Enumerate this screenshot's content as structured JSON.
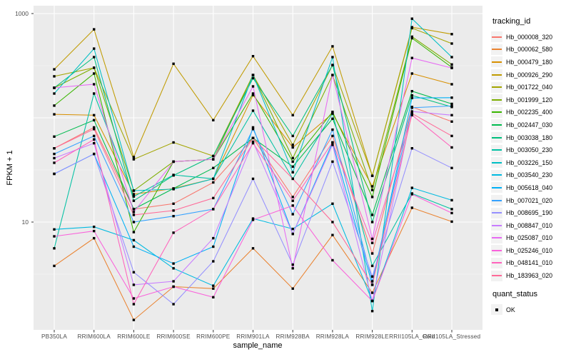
{
  "chart_data": {
    "type": "line",
    "title": "",
    "xlabel": "sample_name",
    "ylabel": "FPKM + 1",
    "scale": "log10",
    "ylim": [
      1,
      1200
    ],
    "yticks": [
      1000,
      10
    ],
    "ytick_labels": [
      "1000",
      "10"
    ],
    "panel_bg": "#EBEBEB",
    "grid_color": "#FFFFFF",
    "point": {
      "shape": "square",
      "color": "#000000"
    },
    "legend_title": "tracking_id",
    "legend2_title": "quant_status",
    "legend2_items": [
      "OK"
    ],
    "legend_position": "right",
    "categories": [
      "PB350LA",
      "RRIM600LA",
      "RRIM600LE",
      "RRIM600SE",
      "RRIM600PE",
      "RRIM901LA",
      "RRIM928BA",
      "RRIM928LA",
      "RRIM928LE",
      "RRII105LA_Cold",
      "RRII105LA_Stressed"
    ],
    "series": [
      {
        "name": "Hb_000008_320",
        "color": "#F8766D",
        "values": [
          51,
          81,
          13.3,
          15,
          24,
          64,
          17.4,
          67,
          5,
          127,
          92
        ]
      },
      {
        "name": "Hb_000062_580",
        "color": "#EA8331",
        "values": [
          3.8,
          7,
          1.15,
          2.4,
          2.3,
          5.6,
          2.3,
          7.5,
          2.1,
          13.7,
          10.1
        ]
      },
      {
        "name": "Hb_000479_180",
        "color": "#D89000",
        "values": [
          108,
          106,
          18.5,
          21,
          26,
          165,
          52,
          110,
          22,
          266,
          210
        ]
      },
      {
        "name": "Hb_000926_290",
        "color": "#C09B00",
        "values": [
          292,
          706,
          42,
          330,
          95,
          390,
          106,
          485,
          27.8,
          740,
          635
        ]
      },
      {
        "name": "Hb_001722_040",
        "color": "#A3A500",
        "values": [
          250,
          302,
          40,
          58,
          43,
          257,
          55,
          321,
          27.8,
          725,
          516
        ]
      },
      {
        "name": "Hb_001999_120",
        "color": "#7CAE00",
        "values": [
          194,
          302,
          20,
          38,
          40,
          257,
          41,
          257,
          20.3,
          600,
          325
        ]
      },
      {
        "name": "Hb_002235_400",
        "color": "#39B600",
        "values": [
          131,
          266,
          8,
          38,
          40,
          171,
          38,
          114,
          17.4,
          580,
          305
        ]
      },
      {
        "name": "Hb_002447_030",
        "color": "#00BB4E",
        "values": [
          66,
          95,
          13.3,
          21,
          33,
          64,
          34,
          98,
          11.7,
          180,
          136
        ]
      },
      {
        "name": "Hb_003038_180",
        "color": "#00BF7D",
        "values": [
          194,
          382,
          16,
          28,
          43,
          240,
          67,
          321,
          10,
          164,
          127
        ]
      },
      {
        "name": "Hb_003050_230",
        "color": "#00C1A3",
        "values": [
          5.6,
          171,
          17.6,
          28.3,
          26,
          117,
          26,
          110,
          3.8,
          18.8,
          13.3
        ]
      },
      {
        "name": "Hb_003226_150",
        "color": "#00BFC4",
        "values": [
          171,
          461,
          20,
          20.7,
          26,
          257,
          30,
          382,
          1.4,
          893,
          382
        ]
      },
      {
        "name": "Hb_003540_230",
        "color": "#00BAE0",
        "values": [
          8.5,
          9,
          6.7,
          3.6,
          2.45,
          10.8,
          8.6,
          15,
          1.75,
          21.3,
          16.2
        ]
      },
      {
        "name": "Hb_005618_040",
        "color": "#00B0F6",
        "values": [
          29,
          45,
          5.8,
          4,
          5.8,
          81,
          7.7,
          58,
          2.5,
          155,
          156
        ]
      },
      {
        "name": "Hb_007021_020",
        "color": "#35A2FF",
        "values": [
          45,
          67,
          10,
          11.4,
          13.3,
          78,
          11.9,
          77,
          2.7,
          125,
          130
        ]
      },
      {
        "name": "Hb_008695_190",
        "color": "#9590FF",
        "values": [
          29,
          45,
          3.3,
          1.63,
          4.2,
          26,
          3.9,
          38,
          3,
          51,
          33
        ]
      },
      {
        "name": "Hb_008847_010",
        "color": "#C77CFF",
        "values": [
          41,
          57,
          2.5,
          2.7,
          7,
          59,
          7.7,
          55,
          1.75,
          115,
          106
        ]
      },
      {
        "name": "Hb_025087_010",
        "color": "#E76BF3",
        "values": [
          194,
          210,
          12.5,
          38,
          40,
          200,
          3.6,
          257,
          6.9,
          375,
          300
        ]
      },
      {
        "name": "Hb_025246_010",
        "color": "#FA62DB",
        "values": [
          7.3,
          8.2,
          1.85,
          2.4,
          1.9,
          10.5,
          14.4,
          4.3,
          1.75,
          18.5,
          12.2
        ]
      },
      {
        "name": "Hb_048141_010",
        "color": "#FF62BC",
        "values": [
          37,
          62,
          1.63,
          7.9,
          13.3,
          57,
          16,
          58,
          6.3,
          106,
          52
        ]
      },
      {
        "name": "Hb_183963_020",
        "color": "#FF6A98",
        "values": [
          51,
          78,
          11.7,
          12.9,
          17,
          64,
          26,
          10,
          2.5,
          110,
          67
        ]
      }
    ]
  }
}
